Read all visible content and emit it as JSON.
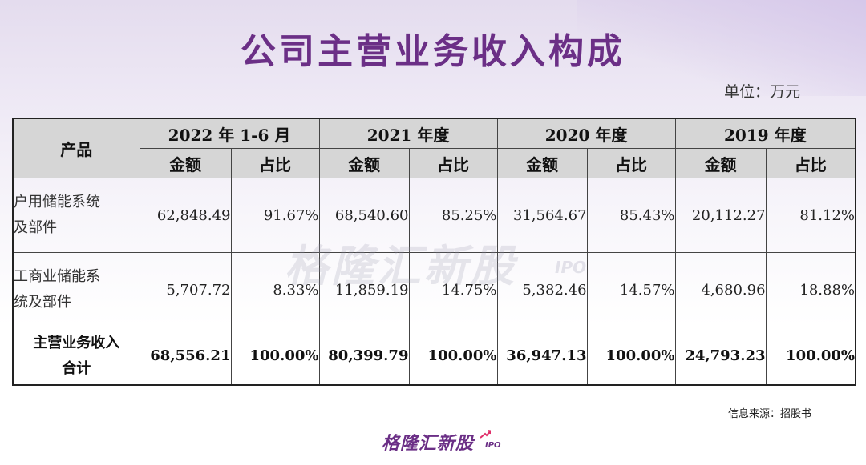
{
  "title": "公司主营业务收入构成",
  "unit": "单位：万元",
  "table": {
    "product_header": "产品",
    "periods": [
      "2022 年 1-6 月",
      "2021 年度",
      "2020 年度",
      "2019 年度"
    ],
    "amount_label": "金额",
    "ratio_label": "占比",
    "rows": [
      {
        "name_line1": "户用储能系统",
        "name_line2": "及部件",
        "cells": [
          "62,848.49",
          "91.67%",
          "68,540.60",
          "85.25%",
          "31,564.67",
          "85.43%",
          "20,112.27",
          "81.12%"
        ]
      },
      {
        "name_line1": "工商业储能系",
        "name_line2": "统及部件",
        "cells": [
          "5,707.72",
          "8.33%",
          "11,859.19",
          "14.75%",
          "5,382.46",
          "14.57%",
          "4,680.96",
          "18.88%"
        ]
      },
      {
        "name_line1": "主营业务收入",
        "name_line2": "合计",
        "cells": [
          "68,556.21",
          "100.00%",
          "80,399.79",
          "100.00%",
          "36,947.13",
          "100.00%",
          "24,793.23",
          "100.00%"
        ]
      }
    ]
  },
  "watermark": {
    "text": "格隆汇新股",
    "sub": "IPO"
  },
  "source": "信息来源：招股书",
  "logo": {
    "text": "格隆汇新股",
    "sub": "IPO",
    "accent_color": "#6b2f86",
    "arrow_color": "#e0306a"
  }
}
